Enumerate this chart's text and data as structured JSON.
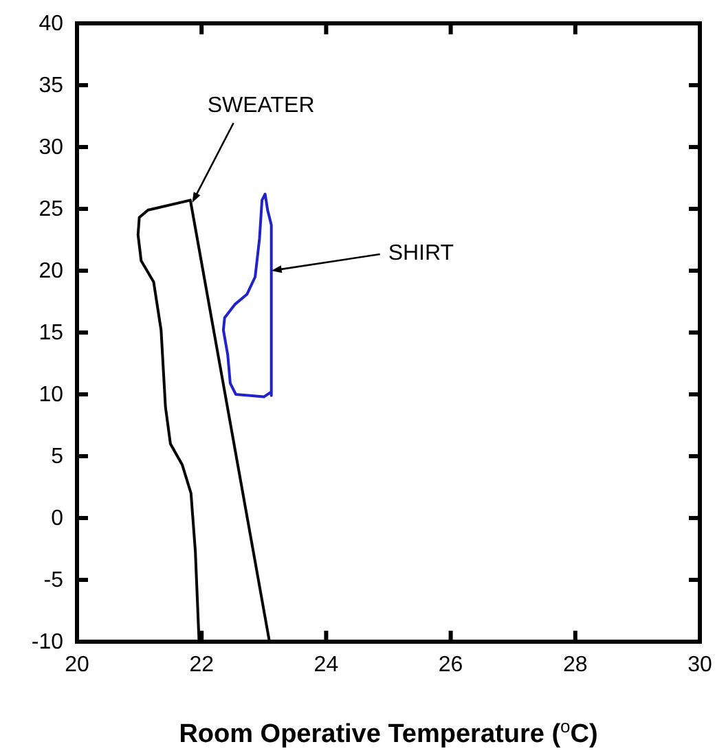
{
  "chart_data": {
    "type": "line",
    "xlabel": "Room Operative Temperature ($^{o}$C)",
    "xlim": [
      20,
      30
    ],
    "xticks": [
      20,
      22,
      24,
      26,
      28,
      30
    ],
    "ylim": [
      -10,
      40
    ],
    "yticks": [
      -10,
      -5,
      0,
      5,
      10,
      15,
      20,
      25,
      30,
      35,
      40
    ],
    "grid": false,
    "line_style": "solid",
    "series": [
      {
        "color": "#000000",
        "x": [
          21.96,
          21.9,
          21.83,
          21.69,
          21.5,
          21.42,
          21.35,
          21.23,
          21.03,
          20.98,
          21.0,
          21.14,
          21.82,
          23.09
        ],
        "values": [
          -10,
          -2.7,
          2.0,
          4.3,
          6.0,
          9.0,
          15.2,
          19.1,
          20.8,
          22.9,
          24.3,
          24.9,
          25.7,
          -10
        ]
      },
      {
        "color": "#2222cc",
        "x": [
          23.12,
          23.12,
          23.06,
          23.02,
          22.97,
          22.93,
          22.86,
          22.73,
          22.54,
          22.37,
          22.35,
          22.42,
          22.46,
          22.55,
          23.0,
          23.12
        ],
        "values": [
          9.9,
          23.7,
          24.9,
          26.2,
          25.7,
          22.6,
          19.5,
          18.1,
          17.3,
          16.2,
          15.2,
          13.2,
          10.9,
          10.0,
          9.8,
          10.2
        ]
      }
    ],
    "annotations": [
      {
        "text": "SWEATER",
        "x": 21.85,
        "y": 25.5
      },
      {
        "text": "SHIRT",
        "x": 23.12,
        "y": 20
      }
    ]
  }
}
